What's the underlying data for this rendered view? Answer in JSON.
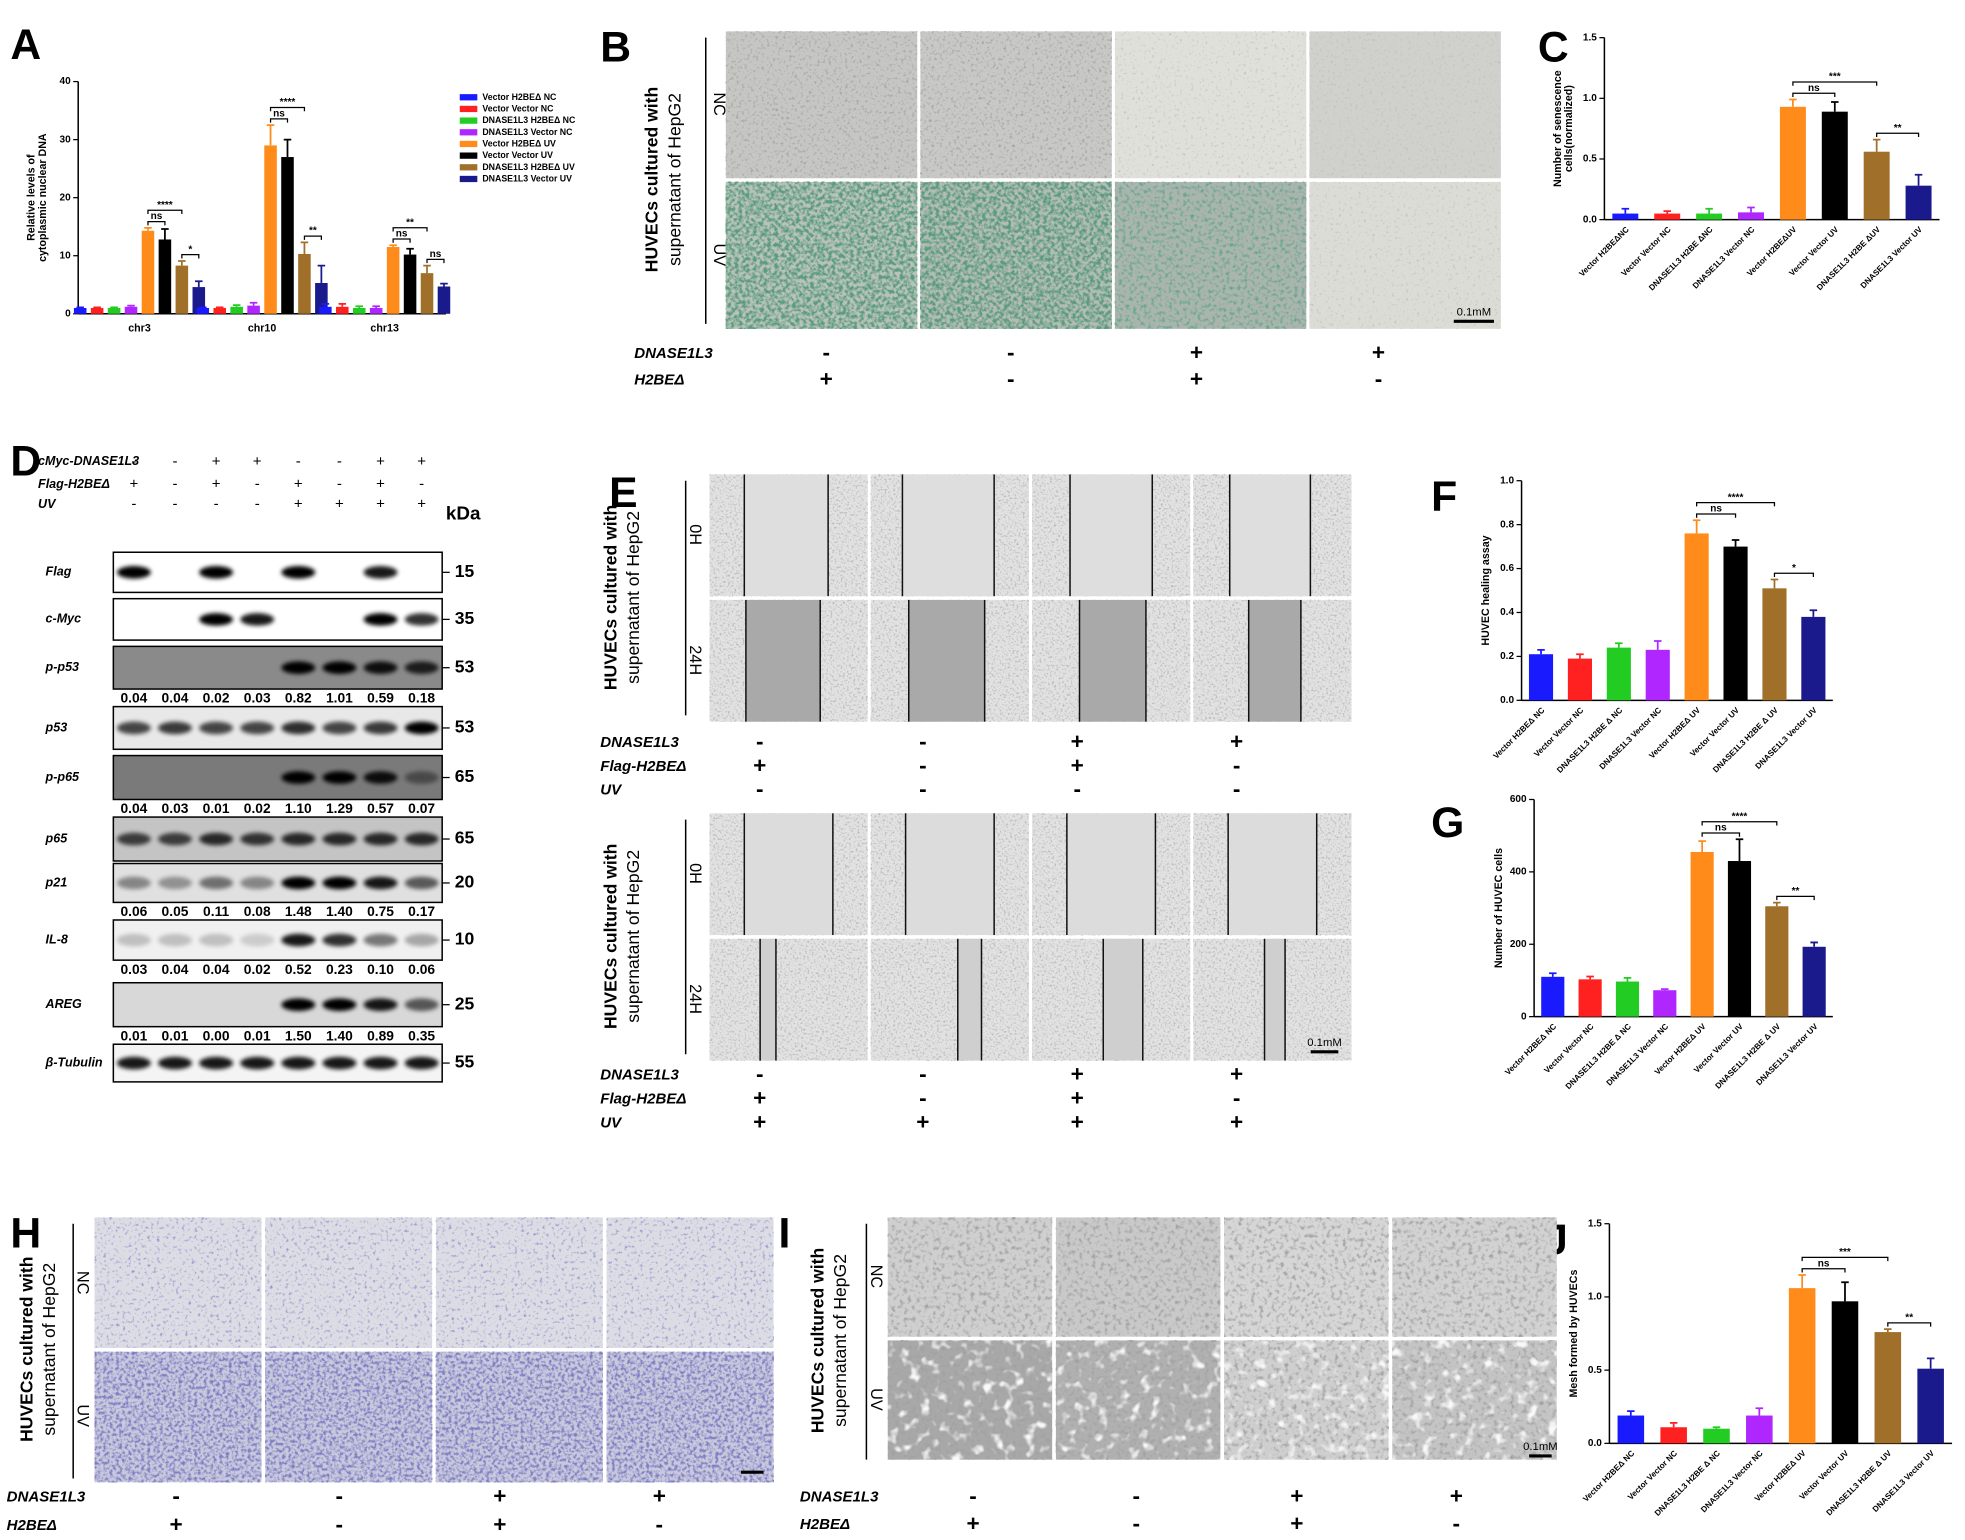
{
  "panel_letters": [
    "A",
    "B",
    "C",
    "D",
    "E",
    "F",
    "G",
    "H",
    "I",
    "J"
  ],
  "chart_data": [
    {
      "type": "bar",
      "y_label": [
        "Relative levels of",
        "cytoplasmic nuclear DNA"
      ],
      "categories": [
        "chr3",
        "chr10",
        "chr13"
      ],
      "ylim": [
        0,
        40
      ],
      "yticks": [
        0,
        10,
        20,
        30,
        40
      ],
      "series": [
        {
          "name": "Vector H2BEΔ NC",
          "color": "#1a1aff",
          "values": [
            1.0,
            1.0,
            1.2
          ],
          "errors": [
            0.1,
            0.1,
            0.5
          ]
        },
        {
          "name": "Vector Vector  NC",
          "color": "#ff2020",
          "values": [
            1.0,
            1.0,
            1.2
          ],
          "errors": [
            0.1,
            0.1,
            0.5
          ]
        },
        {
          "name": "DNASE1L3 H2BEΔ NC",
          "color": "#22cc22",
          "values": [
            1.0,
            1.2,
            1.0
          ],
          "errors": [
            0.1,
            0.3,
            0.3
          ]
        },
        {
          "name": "DNASE1L3 Vector NC",
          "color": "#b026ff",
          "values": [
            1.2,
            1.4,
            1.0
          ],
          "errors": [
            0.2,
            0.5,
            0.3
          ]
        },
        {
          "name": "Vector H2BEΔ UV",
          "color": "#ff8c1a",
          "values": [
            14.3,
            29,
            11.5
          ],
          "errors": [
            0.5,
            3.5,
            0.3
          ]
        },
        {
          "name": "Vector Vector UV",
          "color": "#000000",
          "values": [
            12.8,
            27,
            10.2
          ],
          "errors": [
            1.8,
            3.0,
            1.0
          ]
        },
        {
          "name": "DNASE1L3 H2BEΔ UV",
          "color": "#a0702a",
          "values": [
            8.3,
            10.3,
            7.0
          ],
          "errors": [
            0.8,
            2.0,
            1.3
          ]
        },
        {
          "name": "DNASE1L3 Vector UV",
          "color": "#1a1a8c",
          "values": [
            4.6,
            5.3,
            4.7
          ],
          "errors": [
            1.0,
            3.0,
            0.5
          ]
        }
      ],
      "annotations": [
        "ns",
        "****",
        "*",
        "ns",
        "****",
        "**",
        "ns",
        "**",
        "ns"
      ]
    },
    {
      "type": "bar",
      "y_label": [
        "Number of  senescence",
        "cells(normalized)"
      ],
      "categories": [
        "Vector H2BEΔNC",
        "Vector Vector NC",
        "DNASE1L3 H2BE ΔNC",
        "DNASE1L3 Vector NC",
        "Vector H2BEΔUV",
        "Vector Vector UV",
        "DNASE1L3 H2BE ΔUV",
        "DNASE1L3 Vector UV"
      ],
      "ylim": [
        0,
        1.5
      ],
      "yticks": [
        {
          "value": 0,
          "label": "0.0"
        },
        0.5,
        {
          "value": 1,
          "label": "1.0"
        },
        1.5
      ],
      "values": [
        0.05,
        0.05,
        0.05,
        0.06,
        0.93,
        0.89,
        0.56,
        0.28
      ],
      "errors": [
        0.04,
        0.02,
        0.04,
        0.04,
        0.06,
        0.08,
        0.1,
        0.09
      ],
      "colors": [
        "#1a1aff",
        "#ff2020",
        "#22cc22",
        "#b026ff",
        "#ff8c1a",
        "#000000",
        "#a0702a",
        "#1a1a8c"
      ],
      "annotations": [
        "ns",
        "***",
        "**"
      ]
    },
    {
      "type": "bar",
      "y_label": [
        "HUVEC healing assay"
      ],
      "categories": [
        "Vector H2BEΔ NC",
        "Vector Vector NC",
        "DNASE1L3 H2BE Δ NC",
        "DNASE1L3 Vector NC",
        "Vector H2BEΔ UV",
        "Vector Vector UV",
        "DNASE1L3 H2BE Δ UV",
        "DNASE1L3 Vector UV"
      ],
      "ylim": [
        0,
        1
      ],
      "yticks": [
        {
          "value": 0,
          "label": "0.0"
        },
        0.2,
        0.4,
        0.6,
        0.8,
        {
          "value": 1,
          "label": "1.0"
        }
      ],
      "values": [
        0.21,
        0.19,
        0.24,
        0.23,
        0.76,
        0.7,
        0.51,
        0.38
      ],
      "errors": [
        0.02,
        0.02,
        0.02,
        0.04,
        0.06,
        0.03,
        0.04,
        0.03
      ],
      "colors": [
        "#1a1aff",
        "#ff2020",
        "#22cc22",
        "#b026ff",
        "#ff8c1a",
        "#000000",
        "#a0702a",
        "#1a1a8c"
      ],
      "annotations": [
        "ns",
        "****",
        "*"
      ]
    },
    {
      "type": "bar",
      "y_label": [
        "Number of  HUVEC cells"
      ],
      "categories": [
        "Vector H2BEΔ NC",
        "Vector Vector NC",
        "DNASE1L3 H2BE Δ NC",
        "DNASE1L3 Vector NC",
        "Vector H2BEΔ UV",
        "Vector Vector UV",
        "DNASE1L3 H2BE Δ UV",
        "DNASE1L3 Vector UV"
      ],
      "ylim": [
        0,
        600
      ],
      "yticks": [
        0,
        200,
        400,
        600
      ],
      "values": [
        110,
        103,
        97,
        73,
        455,
        430,
        305,
        193
      ],
      "errors": [
        10,
        8,
        10,
        3,
        30,
        60,
        10,
        12
      ],
      "colors": [
        "#1a1aff",
        "#ff2020",
        "#22cc22",
        "#b026ff",
        "#ff8c1a",
        "#000000",
        "#a0702a",
        "#1a1a8c"
      ],
      "annotations": [
        "ns",
        "****",
        "**"
      ]
    },
    {
      "type": "bar",
      "y_label": [
        "Mesh formed by HUVECs"
      ],
      "categories": [
        "Vector H2BEΔ NC",
        "Vector Vector NC",
        "DNASE1L3 H2BE Δ NC",
        "DNASE1L3 Vector NC",
        "Vector H2BEΔ UV",
        "Vector Vector UV",
        "DNASE1L3 H2BE Δ UV",
        "DNASE1L3 Vector UV"
      ],
      "ylim": [
        0,
        1.5
      ],
      "yticks": [
        {
          "value": 0,
          "label": "0.0"
        },
        0.5,
        {
          "value": 1,
          "label": "1.0"
        },
        1.5
      ],
      "values": [
        0.19,
        0.11,
        0.1,
        0.19,
        1.06,
        0.97,
        0.76,
        0.51
      ],
      "errors": [
        0.03,
        0.03,
        0.01,
        0.05,
        0.09,
        0.13,
        0.02,
        0.07
      ],
      "colors": [
        "#1a1aff",
        "#ff2020",
        "#22cc22",
        "#b026ff",
        "#ff8c1a",
        "#000000",
        "#a0702a",
        "#1a1a8c"
      ],
      "annotations": [
        "ns",
        "***",
        "**"
      ]
    }
  ],
  "panel_b": {
    "side_label": [
      "HUVECs cultured with",
      "supernatant of HepG2"
    ],
    "rows": [
      "NC",
      "UV"
    ],
    "scale": "0.1mM",
    "conditions": [
      {
        "name": "DNASE1L3",
        "signs": [
          "-",
          "-",
          "+",
          "+"
        ]
      },
      {
        "name": "H2BEΔ",
        "signs": [
          "+",
          "-",
          "+",
          "-"
        ]
      }
    ]
  },
  "panel_d": {
    "kda_label": "kDa",
    "treatments": [
      {
        "name": "cMyc-DNASE1L3",
        "signs": [
          "-",
          "-",
          "+",
          "+",
          "-",
          "-",
          "+",
          "+"
        ]
      },
      {
        "name": "Flag-H2BEΔ",
        "signs": [
          "+",
          "-",
          "+",
          "-",
          "+",
          "-",
          "+",
          "-"
        ]
      },
      {
        "name": "UV",
        "signs": [
          "-",
          "-",
          "-",
          "-",
          "+",
          "+",
          "+",
          "+"
        ]
      }
    ],
    "blots": [
      {
        "name": "Flag",
        "kda": 15
      },
      {
        "name": "c-Myc",
        "kda": 35
      },
      {
        "name": "p-p53",
        "kda": 53,
        "quant": [
          "0.04",
          "0.04",
          "0.02",
          "0.03",
          "0.82",
          "1.01",
          "0.59",
          "0.18"
        ]
      },
      {
        "name": "p53",
        "kda": 53
      },
      {
        "name": "p-p65",
        "kda": 65,
        "quant": [
          "0.04",
          "0.03",
          "0.01",
          "0.02",
          "1.10",
          "1.29",
          "0.57",
          "0.07"
        ]
      },
      {
        "name": "p65",
        "kda": 65
      },
      {
        "name": "p21",
        "kda": 20,
        "quant": [
          "0.06",
          "0.05",
          "0.11",
          "0.08",
          "1.48",
          "1.40",
          "0.75",
          "0.17"
        ]
      },
      {
        "name": "IL-8",
        "kda": 10,
        "quant": [
          "0.03",
          "0.04",
          "0.04",
          "0.02",
          "0.52",
          "0.23",
          "0.10",
          "0.06"
        ]
      },
      {
        "name": "AREG",
        "kda": 25,
        "quant": [
          "0.01",
          "0.01",
          "0.00",
          "0.01",
          "1.50",
          "1.40",
          "0.89",
          "0.35"
        ]
      },
      {
        "name": "β-Tubulin",
        "kda": 55
      }
    ]
  },
  "panel_e": {
    "side_label": [
      "HUVECs cultured with",
      "supernatant of HepG2"
    ],
    "rows": [
      "0H",
      "24H"
    ],
    "scale": "0.1mM",
    "top_conditions": [
      {
        "name": "DNASE1L3",
        "signs": [
          "-",
          "-",
          "+",
          "+"
        ]
      },
      {
        "name": "Flag-H2BEΔ",
        "signs": [
          "+",
          "-",
          "+",
          "-"
        ]
      },
      {
        "name": "UV",
        "signs": [
          "-",
          "-",
          "-",
          "-"
        ]
      }
    ],
    "bottom_conditions": [
      {
        "name": "DNASE1L3",
        "signs": [
          "-",
          "-",
          "+",
          "+"
        ]
      },
      {
        "name": "Flag-H2BEΔ",
        "signs": [
          "+",
          "-",
          "+",
          "-"
        ]
      },
      {
        "name": "UV",
        "signs": [
          "+",
          "+",
          "+",
          "+"
        ]
      }
    ]
  },
  "panel_h": {
    "side_label": [
      "HUVECs cultured with",
      "supernatant of HepG2"
    ],
    "rows": [
      "NC",
      "UV"
    ],
    "conditions": [
      {
        "name": "DNASE1L3",
        "signs": [
          "-",
          "-",
          "+",
          "+"
        ]
      },
      {
        "name": "H2BEΔ",
        "signs": [
          "+",
          "-",
          "+",
          "-"
        ]
      }
    ]
  },
  "panel_i": {
    "side_label": [
      "HUVECs cultured with",
      "supernatant of HepG2"
    ],
    "rows": [
      "NC",
      "UV"
    ],
    "scale": "0.1mM",
    "conditions": [
      {
        "name": "DNASE1L3",
        "signs": [
          "-",
          "-",
          "+",
          "+"
        ]
      },
      {
        "name": "H2BEΔ",
        "signs": [
          "+",
          "-",
          "+",
          "-"
        ]
      }
    ]
  }
}
